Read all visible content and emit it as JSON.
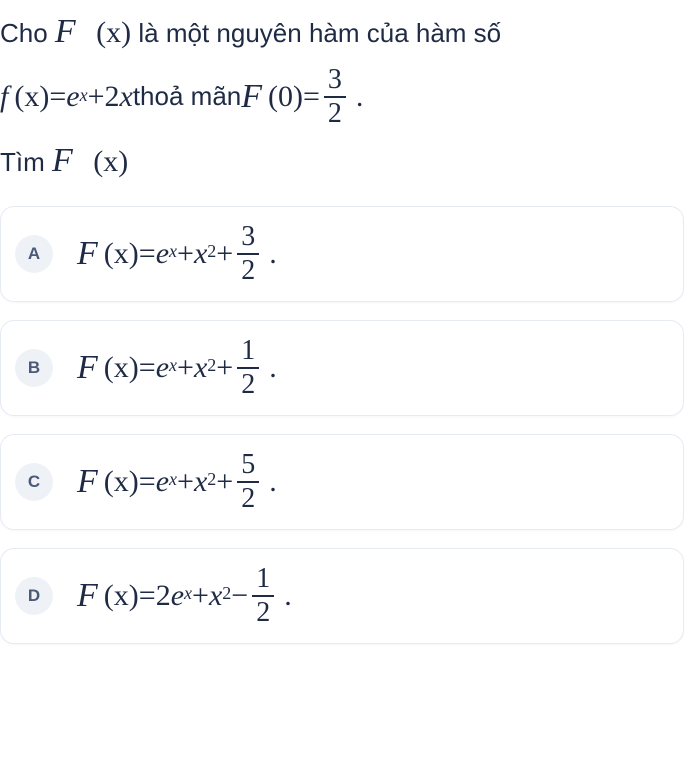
{
  "question": {
    "line1_pre": "Cho ",
    "F": "F",
    "paren_x": "(x)",
    "line1_mid": " là một nguyên hàm của hàm số",
    "f": "f",
    "eq": " = ",
    "e": "e",
    "sup_x": "x",
    "plus": " + ",
    "minus": " − ",
    "two_x": "2x",
    "line2_mid": " thoả mãn ",
    "zero_arg": "(0)",
    "frac_3": "3",
    "frac_2": "2",
    "dot": ".",
    "line3_pre": "Tìm "
  },
  "options": [
    {
      "letter": "A",
      "lhs_F": "F",
      "lhs_arg": "(x)",
      "eq": " = ",
      "e": "e",
      "sup_x": "x",
      "plus": " + ",
      "x": "x",
      "sup_2": "2",
      "op": "plus",
      "num": "3",
      "den": "2",
      "dot": "."
    },
    {
      "letter": "B",
      "lhs_F": "F",
      "lhs_arg": "(x)",
      "eq": " = ",
      "e": "e",
      "sup_x": "x",
      "plus": " + ",
      "x": "x",
      "sup_2": "2",
      "op": "plus",
      "num": "1",
      "den": "2",
      "dot": "."
    },
    {
      "letter": "C",
      "lhs_F": "F",
      "lhs_arg": "(x)",
      "eq": " = ",
      "e": "e",
      "sup_x": "x",
      "plus": " + ",
      "x": "x",
      "sup_2": "2",
      "op": "plus",
      "num": "5",
      "den": "2",
      "dot": "."
    },
    {
      "letter": "D",
      "lhs_F": "F",
      "lhs_arg": "(x)",
      "eq": " = ",
      "coeff": "2",
      "e": "e",
      "sup_x": "x",
      "plus": " + ",
      "x": "x",
      "sup_2": "2",
      "op": "minus",
      "num": "1",
      "den": "2",
      "dot": "."
    }
  ],
  "style": {
    "text_color": "#1f2a44",
    "badge_bg": "#eef1f6",
    "badge_fg": "#4a5a78",
    "card_border": "#e6eaf2",
    "background": "#ffffff"
  }
}
